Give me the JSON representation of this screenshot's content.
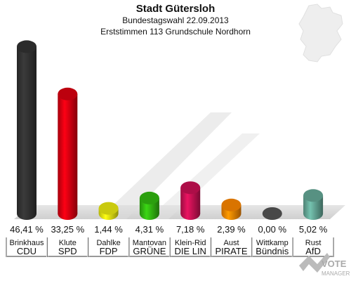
{
  "header": {
    "title": "Stadt Gütersloh",
    "subtitle": "Bundestagswahl 22.09.2013",
    "subtitle2": "Erststimmen 113 Grundschule Nordhorn"
  },
  "watermark": {
    "text": "VOTE MANAGER"
  },
  "chart_data": {
    "type": "bar",
    "title": "Stadt Gütersloh",
    "ylim": [
      0,
      50
    ],
    "value_labels": [
      "46,41 %",
      "33,25 %",
      "1,44 %",
      "4,31 %",
      "7,18 %",
      "2,39 %",
      "0,00 %",
      "5,02 %"
    ],
    "candidates": [
      "Brinkhaus",
      "Klute",
      "Dahlke",
      "Mantovan",
      "Klein-Rid",
      "Aust",
      "Wittkamp",
      "Rust"
    ],
    "categories": [
      "CDU",
      "SPD",
      "FDP",
      "GRÜNE",
      "DIE LIN",
      "PIRATE",
      "Bündnis",
      "AfD"
    ],
    "values": [
      46.41,
      33.25,
      1.44,
      4.31,
      7.18,
      2.39,
      0.0,
      5.02
    ],
    "colors": [
      "#333333",
      "#dd0011",
      "#eeee11",
      "#33bb11",
      "#cc1155",
      "#ff8800",
      "#555555",
      "#66aa99"
    ]
  }
}
